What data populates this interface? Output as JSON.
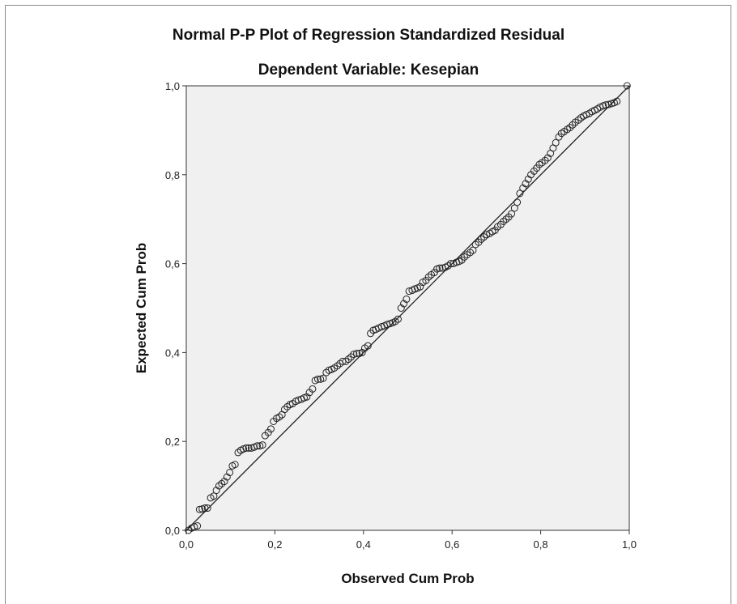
{
  "chart_data": {
    "type": "scatter",
    "title": "Normal P-P Plot of Regression Standardized Residual",
    "subtitle": "Dependent Variable: Kesepian",
    "xlabel": "Observed Cum Prob",
    "ylabel": "Expected Cum Prob",
    "xlim": [
      0,
      1
    ],
    "ylim": [
      0,
      1
    ],
    "xticks": [
      "0,0",
      "0,2",
      "0,4",
      "0,6",
      "0,8",
      "1,0"
    ],
    "yticks": [
      "0,0",
      "0,2",
      "0,4",
      "0,6",
      "0,8",
      "1,0"
    ],
    "reference_line": [
      [
        0,
        0
      ],
      [
        1,
        1
      ]
    ],
    "grid": false,
    "colors": {
      "plot_background": "#f0f0f0",
      "marker_edge": "#222222",
      "line": "#222222"
    },
    "points": [
      [
        0.005,
        0.0
      ],
      [
        0.012,
        0.005
      ],
      [
        0.018,
        0.008
      ],
      [
        0.025,
        0.01
      ],
      [
        0.03,
        0.047
      ],
      [
        0.036,
        0.048
      ],
      [
        0.042,
        0.05
      ],
      [
        0.048,
        0.05
      ],
      [
        0.055,
        0.073
      ],
      [
        0.062,
        0.077
      ],
      [
        0.068,
        0.09
      ],
      [
        0.074,
        0.1
      ],
      [
        0.08,
        0.105
      ],
      [
        0.086,
        0.11
      ],
      [
        0.092,
        0.12
      ],
      [
        0.098,
        0.13
      ],
      [
        0.104,
        0.145
      ],
      [
        0.11,
        0.148
      ],
      [
        0.117,
        0.175
      ],
      [
        0.123,
        0.18
      ],
      [
        0.129,
        0.183
      ],
      [
        0.135,
        0.185
      ],
      [
        0.141,
        0.185
      ],
      [
        0.147,
        0.185
      ],
      [
        0.153,
        0.187
      ],
      [
        0.16,
        0.19
      ],
      [
        0.166,
        0.19
      ],
      [
        0.172,
        0.192
      ],
      [
        0.178,
        0.213
      ],
      [
        0.185,
        0.22
      ],
      [
        0.191,
        0.228
      ],
      [
        0.197,
        0.245
      ],
      [
        0.204,
        0.252
      ],
      [
        0.21,
        0.255
      ],
      [
        0.216,
        0.26
      ],
      [
        0.222,
        0.272
      ],
      [
        0.228,
        0.278
      ],
      [
        0.234,
        0.283
      ],
      [
        0.24,
        0.285
      ],
      [
        0.247,
        0.29
      ],
      [
        0.253,
        0.293
      ],
      [
        0.26,
        0.295
      ],
      [
        0.266,
        0.298
      ],
      [
        0.272,
        0.3
      ],
      [
        0.278,
        0.31
      ],
      [
        0.285,
        0.318
      ],
      [
        0.291,
        0.337
      ],
      [
        0.297,
        0.34
      ],
      [
        0.303,
        0.34
      ],
      [
        0.309,
        0.342
      ],
      [
        0.316,
        0.355
      ],
      [
        0.322,
        0.36
      ],
      [
        0.328,
        0.362
      ],
      [
        0.334,
        0.365
      ],
      [
        0.341,
        0.37
      ],
      [
        0.347,
        0.375
      ],
      [
        0.353,
        0.38
      ],
      [
        0.36,
        0.38
      ],
      [
        0.366,
        0.385
      ],
      [
        0.372,
        0.39
      ],
      [
        0.378,
        0.396
      ],
      [
        0.385,
        0.398
      ],
      [
        0.391,
        0.398
      ],
      [
        0.397,
        0.4
      ],
      [
        0.403,
        0.41
      ],
      [
        0.41,
        0.415
      ],
      [
        0.416,
        0.443
      ],
      [
        0.422,
        0.45
      ],
      [
        0.428,
        0.452
      ],
      [
        0.434,
        0.455
      ],
      [
        0.441,
        0.458
      ],
      [
        0.447,
        0.46
      ],
      [
        0.453,
        0.463
      ],
      [
        0.46,
        0.465
      ],
      [
        0.466,
        0.467
      ],
      [
        0.472,
        0.47
      ],
      [
        0.478,
        0.475
      ],
      [
        0.485,
        0.5
      ],
      [
        0.491,
        0.51
      ],
      [
        0.497,
        0.52
      ],
      [
        0.503,
        0.538
      ],
      [
        0.51,
        0.54
      ],
      [
        0.516,
        0.543
      ],
      [
        0.522,
        0.545
      ],
      [
        0.528,
        0.548
      ],
      [
        0.534,
        0.558
      ],
      [
        0.541,
        0.562
      ],
      [
        0.547,
        0.57
      ],
      [
        0.553,
        0.575
      ],
      [
        0.56,
        0.58
      ],
      [
        0.566,
        0.588
      ],
      [
        0.572,
        0.59
      ],
      [
        0.578,
        0.59
      ],
      [
        0.585,
        0.592
      ],
      [
        0.591,
        0.595
      ],
      [
        0.597,
        0.6
      ],
      [
        0.603,
        0.6
      ],
      [
        0.61,
        0.603
      ],
      [
        0.616,
        0.605
      ],
      [
        0.622,
        0.608
      ],
      [
        0.628,
        0.615
      ],
      [
        0.634,
        0.62
      ],
      [
        0.641,
        0.625
      ],
      [
        0.647,
        0.63
      ],
      [
        0.653,
        0.643
      ],
      [
        0.66,
        0.648
      ],
      [
        0.666,
        0.655
      ],
      [
        0.672,
        0.66
      ],
      [
        0.678,
        0.665
      ],
      [
        0.685,
        0.668
      ],
      [
        0.691,
        0.672
      ],
      [
        0.697,
        0.675
      ],
      [
        0.703,
        0.683
      ],
      [
        0.71,
        0.688
      ],
      [
        0.716,
        0.695
      ],
      [
        0.722,
        0.7
      ],
      [
        0.728,
        0.705
      ],
      [
        0.734,
        0.712
      ],
      [
        0.741,
        0.725
      ],
      [
        0.747,
        0.738
      ],
      [
        0.753,
        0.758
      ],
      [
        0.76,
        0.77
      ],
      [
        0.766,
        0.78
      ],
      [
        0.772,
        0.79
      ],
      [
        0.778,
        0.8
      ],
      [
        0.785,
        0.808
      ],
      [
        0.791,
        0.815
      ],
      [
        0.797,
        0.823
      ],
      [
        0.803,
        0.827
      ],
      [
        0.81,
        0.832
      ],
      [
        0.816,
        0.838
      ],
      [
        0.822,
        0.848
      ],
      [
        0.828,
        0.86
      ],
      [
        0.834,
        0.872
      ],
      [
        0.841,
        0.885
      ],
      [
        0.847,
        0.893
      ],
      [
        0.853,
        0.897
      ],
      [
        0.86,
        0.902
      ],
      [
        0.866,
        0.906
      ],
      [
        0.872,
        0.912
      ],
      [
        0.878,
        0.918
      ],
      [
        0.885,
        0.923
      ],
      [
        0.891,
        0.928
      ],
      [
        0.897,
        0.932
      ],
      [
        0.903,
        0.935
      ],
      [
        0.91,
        0.938
      ],
      [
        0.916,
        0.942
      ],
      [
        0.922,
        0.945
      ],
      [
        0.928,
        0.948
      ],
      [
        0.934,
        0.952
      ],
      [
        0.941,
        0.955
      ],
      [
        0.947,
        0.957
      ],
      [
        0.953,
        0.958
      ],
      [
        0.96,
        0.96
      ],
      [
        0.966,
        0.962
      ],
      [
        0.972,
        0.965
      ],
      [
        0.995,
        1.0
      ]
    ]
  }
}
